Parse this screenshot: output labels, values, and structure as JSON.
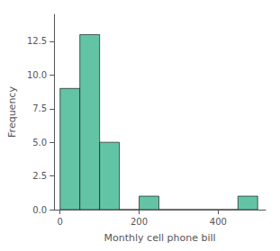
{
  "chart_data": {
    "type": "histogram",
    "xlabel": "Monthly cell phone bill",
    "ylabel": "Frequency",
    "bins": [
      0,
      50,
      100,
      150,
      200,
      250,
      300,
      350,
      400,
      450,
      500
    ],
    "values": [
      9,
      13,
      5,
      0,
      1,
      0,
      0,
      0,
      0,
      1
    ],
    "color": "#63c4a5",
    "xlim": [
      -15,
      520
    ],
    "xticks": [
      0,
      200,
      400
    ],
    "ylim": [
      0,
      14.5
    ],
    "yticks": [
      {
        "value": 0,
        "label": "0.0"
      },
      2.5,
      {
        "value": 5,
        "label": "5.0"
      },
      7.5,
      {
        "value": 10,
        "label": "10.0"
      },
      12.5
    ],
    "grid": false
  }
}
